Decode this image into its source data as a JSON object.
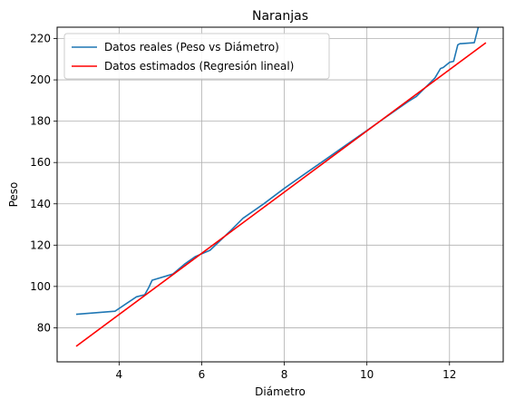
{
  "chart_data": {
    "type": "line",
    "title": "Naranjas",
    "xlabel": "Diámetro",
    "ylabel": "Peso",
    "xlim": [
      2.5,
      13.3
    ],
    "ylim": [
      63.5,
      225.5
    ],
    "xticks": [
      4,
      6,
      8,
      10,
      12
    ],
    "yticks": [
      80,
      100,
      120,
      140,
      160,
      180,
      200,
      220
    ],
    "grid": true,
    "legend_position": "upper-left",
    "series": [
      {
        "name": "Datos reales (Peso vs Diámetro)",
        "color": "#1f77b4",
        "x": [
          2.96,
          3.9,
          4.2,
          4.42,
          4.62,
          4.72,
          4.8,
          5.3,
          5.6,
          5.85,
          6.2,
          6.7,
          7.0,
          7.5,
          8.0,
          8.5,
          9.0,
          9.5,
          10.0,
          10.5,
          11.0,
          11.2,
          11.4,
          11.55,
          11.65,
          11.78,
          11.85,
          12.0,
          12.1,
          12.2,
          12.25,
          12.6,
          12.75,
          12.88
        ],
        "y": [
          86.5,
          88.0,
          92.0,
          95.0,
          96.0,
          99.5,
          103.0,
          106.0,
          111.0,
          114.5,
          117.5,
          127.0,
          133.0,
          140.0,
          147.5,
          154.5,
          161.5,
          168.5,
          175.5,
          182.5,
          189.5,
          192.0,
          196.0,
          199.0,
          201.0,
          205.5,
          206.0,
          208.5,
          209.0,
          217.0,
          217.5,
          218.0,
          229.5,
          231.5
        ]
      },
      {
        "name": "Datos estimados (Regresión lineal)",
        "color": "#ff0000",
        "x": [
          2.96,
          12.88
        ],
        "y": [
          71.0,
          218.0
        ]
      }
    ]
  }
}
